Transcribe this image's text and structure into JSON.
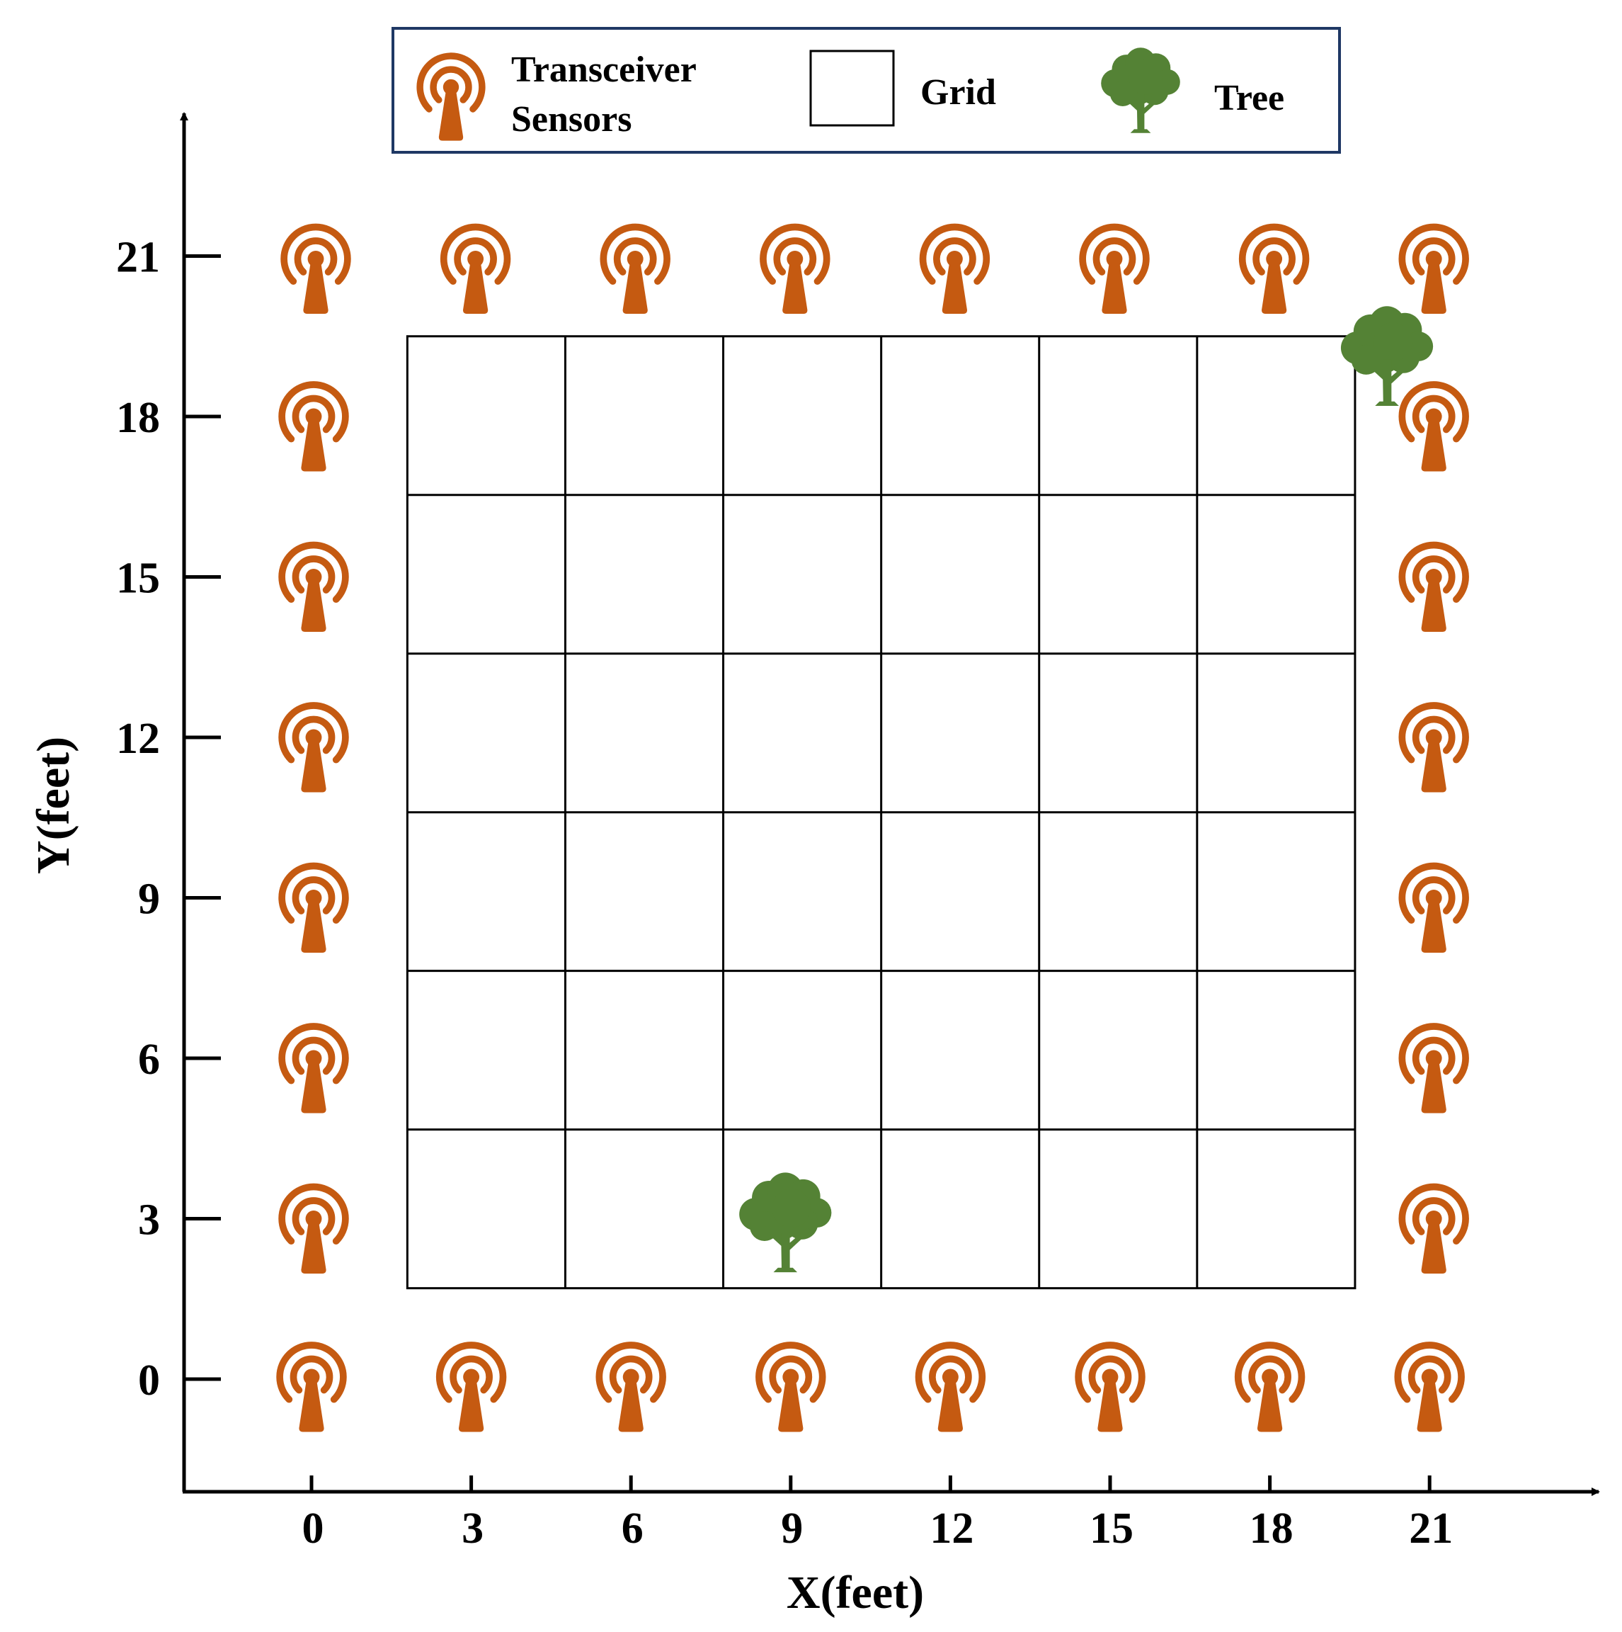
{
  "legend": {
    "items": [
      {
        "icon": "sensor-icon",
        "lines": [
          "Transceiver",
          "Sensors"
        ]
      },
      {
        "icon": "grid-cell-icon",
        "lines": [
          "Grid"
        ]
      },
      {
        "icon": "tree-icon",
        "lines": [
          "Tree"
        ]
      }
    ],
    "border_color": "#1f3864"
  },
  "axes": {
    "x_label": "X(feet)",
    "y_label": "Y(feet)",
    "x_ticks": [
      "0",
      "3",
      "6",
      "9",
      "12",
      "15",
      "18",
      "21"
    ],
    "y_ticks": [
      "0",
      "3",
      "6",
      "9",
      "12",
      "15",
      "18",
      "21"
    ]
  },
  "colors": {
    "sensor": "#c55a11",
    "tree": "#548235",
    "grid_line": "#000000",
    "axis": "#000000"
  },
  "sensors": {
    "bottom_x": [
      0,
      3,
      6,
      9,
      12,
      15,
      18,
      21
    ],
    "top_x": [
      0,
      3,
      6,
      9,
      12,
      15,
      18,
      21
    ],
    "left_y": [
      3,
      6,
      9,
      12,
      15,
      18
    ],
    "right_y": [
      3,
      6,
      9,
      12,
      15,
      18
    ]
  },
  "grid": {
    "x_range": [
      1.8,
      19.6
    ],
    "y_range": [
      1.7,
      19.5
    ],
    "columns": 6,
    "rows": 6
  },
  "trees": [
    {
      "x": 8.9,
      "y": 3.0
    },
    {
      "x": 20.2,
      "y": 19.2
    }
  ]
}
